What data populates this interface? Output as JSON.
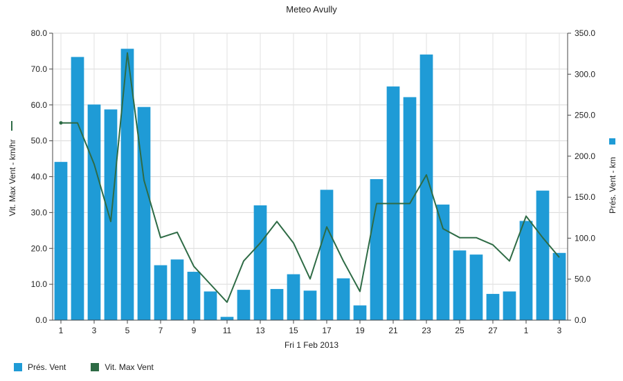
{
  "chart_data": {
    "type": "bar",
    "title": "Meteo  Avully",
    "xlabel": "Fri 1 Feb 2013",
    "y_left_label": "Vit. Max Vent - km/hr",
    "y_right_label": "Prés. Vent - km",
    "y_left_range": [
      0,
      80
    ],
    "y_right_range": [
      0,
      350
    ],
    "y_left_ticks": [
      "0.0",
      "10.0",
      "20.0",
      "30.0",
      "40.0",
      "50.0",
      "60.0",
      "70.0",
      "80.0"
    ],
    "y_right_ticks": [
      "0.0",
      "50.0",
      "100.0",
      "150.0",
      "200.0",
      "250.0",
      "300.0",
      "350.0"
    ],
    "x_tick_labels": [
      "1",
      "3",
      "5",
      "7",
      "9",
      "11",
      "13",
      "15",
      "17",
      "19",
      "21",
      "23",
      "25",
      "27",
      "1",
      "3"
    ],
    "legend_position": "bottom-left",
    "grid": true,
    "series": [
      {
        "name": "Prés. Vent",
        "type": "bar",
        "axis": "right",
        "color": "#1f9bd6",
        "values": [
          193,
          321,
          263,
          257,
          331,
          260,
          67,
          74,
          59,
          35,
          4,
          37,
          140,
          38,
          56,
          36,
          159,
          51,
          18,
          172,
          285,
          272,
          324,
          141,
          85,
          80,
          32,
          35,
          121,
          158,
          82
        ]
      },
      {
        "name": "Vit. Max Vent",
        "type": "line",
        "axis": "left",
        "color": "#2e6b45",
        "values": [
          55,
          55,
          43.5,
          27.5,
          74.5,
          39,
          23,
          24.5,
          15,
          10,
          5,
          16.5,
          21.5,
          27.5,
          21.5,
          11.5,
          26,
          16.5,
          8,
          32.5,
          32.5,
          32.5,
          40.5,
          25.5,
          23,
          23,
          21,
          16.5,
          29,
          23,
          17.5
        ]
      }
    ]
  }
}
